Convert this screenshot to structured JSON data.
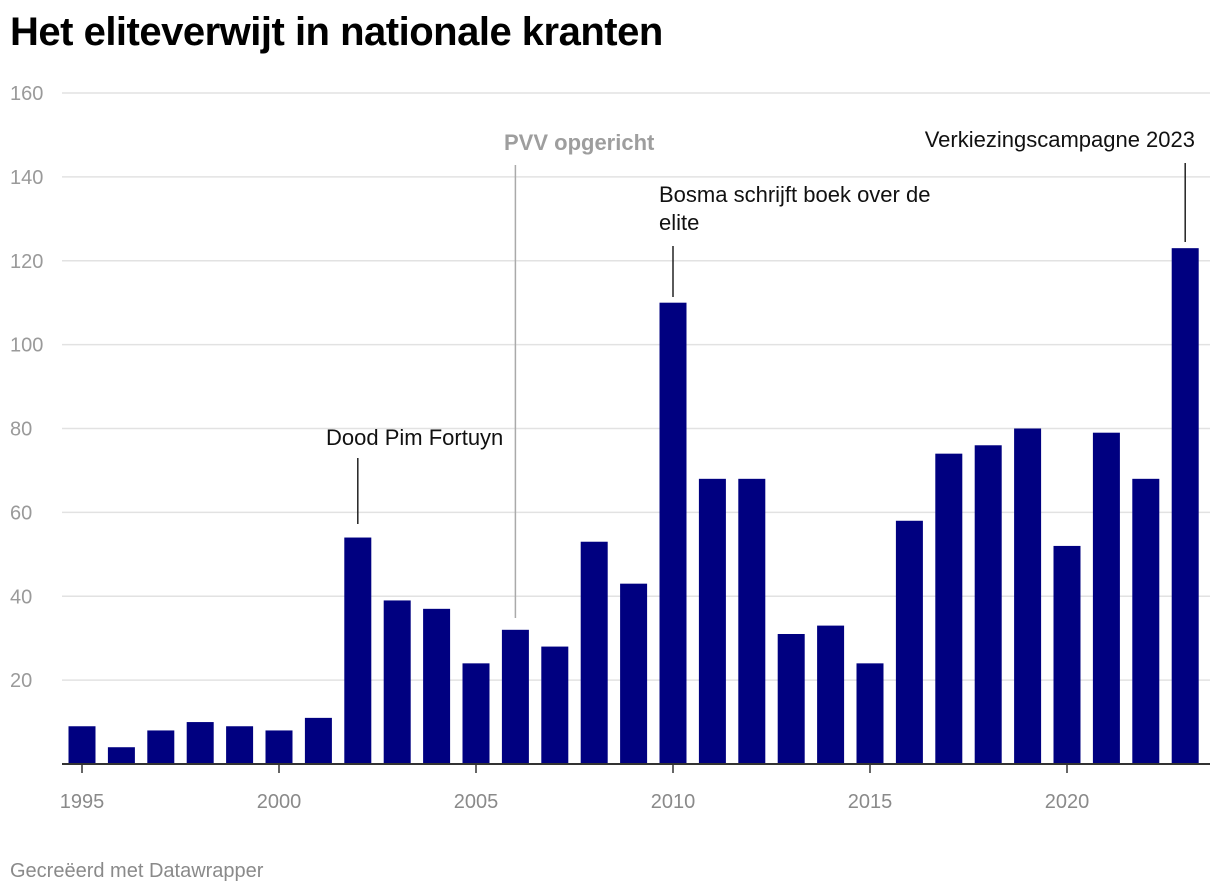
{
  "page": {
    "title": "Het eliteverwijt in nationale kranten",
    "footer": "Gecreëerd met Datawrapper"
  },
  "chart_data": {
    "type": "bar",
    "title": "Het eliteverwijt in nationale kranten",
    "xlabel": "",
    "ylabel": "",
    "x": [
      1995,
      1996,
      1997,
      1998,
      1999,
      2000,
      2001,
      2002,
      2003,
      2004,
      2005,
      2006,
      2007,
      2008,
      2009,
      2010,
      2011,
      2012,
      2013,
      2014,
      2015,
      2016,
      2017,
      2018,
      2019,
      2020,
      2021,
      2022,
      2023
    ],
    "values": [
      9,
      4,
      8,
      10,
      9,
      8,
      11,
      54,
      39,
      37,
      24,
      32,
      28,
      53,
      43,
      110,
      68,
      68,
      31,
      33,
      24,
      58,
      74,
      76,
      80,
      52,
      79,
      68,
      123
    ],
    "ylim": [
      0,
      160
    ],
    "yticks": [
      20,
      40,
      60,
      80,
      100,
      120,
      140,
      160
    ],
    "xticks": [
      1995,
      2000,
      2005,
      2010,
      2015,
      2020
    ],
    "grid": true,
    "bar_color": "#000080",
    "annotations": [
      {
        "lines": [
          "Dood Pim Fortuyn"
        ],
        "x": 2002,
        "style": "dark"
      },
      {
        "lines": [
          "PVV opgericht"
        ],
        "x": 2006,
        "style": "grey"
      },
      {
        "lines": [
          "Bosma schrijft boek over de",
          "elite"
        ],
        "x": 2010,
        "style": "dark"
      },
      {
        "lines": [
          "Verkiezingscampagne 2023"
        ],
        "x": 2023,
        "style": "dark"
      }
    ]
  }
}
